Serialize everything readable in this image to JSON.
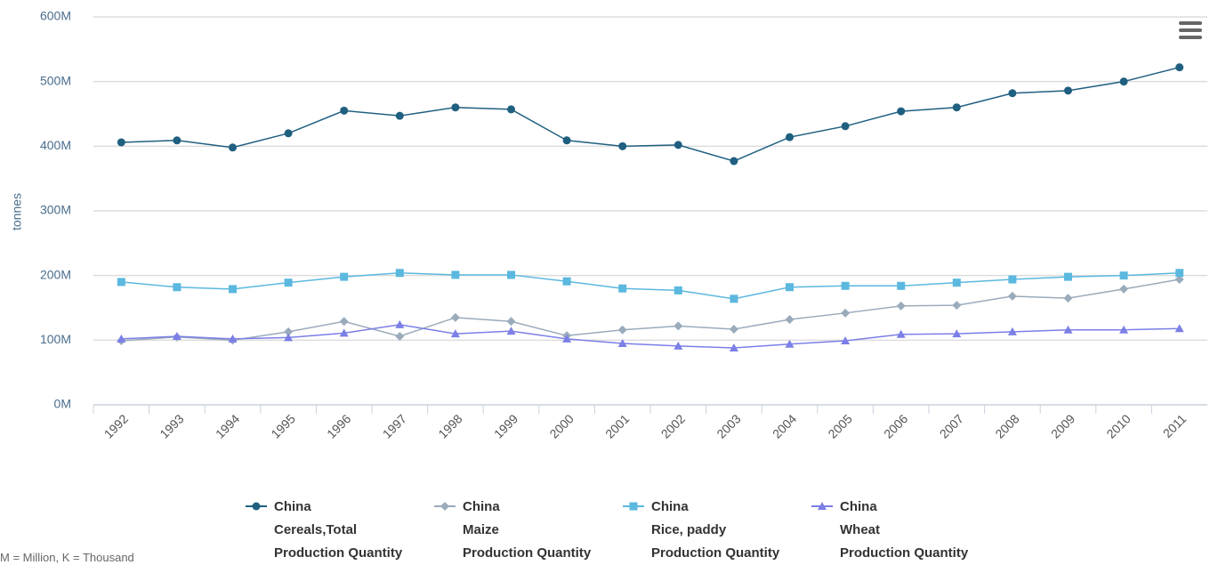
{
  "chart_data": {
    "type": "line",
    "y_label": "tonnes",
    "categories": [
      "1992",
      "1993",
      "1994",
      "1995",
      "1996",
      "1997",
      "1998",
      "1999",
      "2000",
      "2001",
      "2002",
      "2003",
      "2004",
      "2005",
      "2006",
      "2007",
      "2008",
      "2009",
      "2010",
      "2011"
    ],
    "series": [
      {
        "name": "China\nCereals,Total\nProduction Quantity",
        "color": "#1f5f80",
        "marker": "circle",
        "values": [
          406000000,
          409000000,
          398000000,
          420000000,
          455000000,
          447000000,
          460000000,
          457000000,
          409000000,
          400000000,
          402000000,
          377000000,
          414000000,
          431000000,
          454000000,
          460000000,
          482000000,
          486000000,
          500000000,
          522000000
        ]
      },
      {
        "name": "China\nMaize\nProduction Quantity",
        "color": "#9aabbb",
        "marker": "diamond",
        "values": [
          99000000,
          105000000,
          100000000,
          113000000,
          129000000,
          106000000,
          135000000,
          129000000,
          107000000,
          116000000,
          122000000,
          117000000,
          132000000,
          142000000,
          153000000,
          154000000,
          168000000,
          165000000,
          179000000,
          194000000
        ]
      },
      {
        "name": "China\nRice, paddy\nProduction Quantity",
        "color": "#5bb8df",
        "marker": "square",
        "values": [
          190000000,
          182000000,
          179000000,
          189000000,
          198000000,
          204000000,
          201000000,
          201000000,
          191000000,
          180000000,
          177000000,
          164000000,
          182000000,
          184000000,
          184000000,
          189000000,
          194000000,
          198000000,
          200000000,
          204000000
        ]
      },
      {
        "name": "China\nWheat\nProduction Quantity",
        "color": "#7b7fe6",
        "marker": "triangle",
        "values": [
          102000000,
          106000000,
          102000000,
          104000000,
          111000000,
          124000000,
          110000000,
          114000000,
          102000000,
          95000000,
          91000000,
          88000000,
          94000000,
          99000000,
          109000000,
          110000000,
          113000000,
          116000000,
          116000000,
          118000000
        ]
      }
    ],
    "ylim": [
      0,
      600000000
    ],
    "yticks": [
      {
        "value": 0,
        "label": "0M"
      },
      {
        "value": 100000000,
        "label": "100M"
      },
      {
        "value": 200000000,
        "label": "200M"
      },
      {
        "value": 300000000,
        "label": "300M"
      },
      {
        "value": 400000000,
        "label": "400M"
      },
      {
        "value": 500000000,
        "label": "500M"
      },
      {
        "value": 600000000,
        "label": "600M"
      }
    ],
    "grid": true,
    "footnote": "M = Million, K = Thousand"
  }
}
